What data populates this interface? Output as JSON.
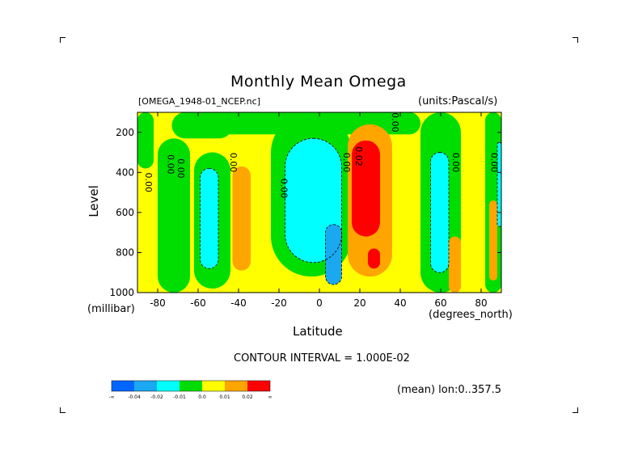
{
  "chart_data": {
    "type": "heatmap",
    "title": "Monthly Mean Omega",
    "source_label": "[OMEGA_1948-01_NCEP.nc]",
    "units_label": "(units:Pascal/s)",
    "xlabel": "Latitude",
    "xunit_label": "(degrees_north)",
    "ylabel": "Level",
    "yunit_label": "(millibar)",
    "xlim": [
      -90,
      90
    ],
    "ylim": [
      1000,
      100
    ],
    "x_ticks": [
      -80,
      -60,
      -40,
      -20,
      0,
      20,
      40,
      60,
      80
    ],
    "x_tick_labels": [
      "-80",
      "-60",
      "-40",
      "-20",
      "0",
      "20",
      "40",
      "60",
      "80"
    ],
    "y_ticks": [
      200,
      400,
      600,
      800,
      1000
    ],
    "y_tick_labels": [
      "200",
      "400",
      "600",
      "800",
      "1000"
    ],
    "contour_interval_text": "CONTOUR INTERVAL = 1.000E-02",
    "mean_note": "(mean) lon:0..357.5",
    "contour_labels": [
      {
        "x": -86,
        "y": 450,
        "text": "0.00"
      },
      {
        "x": -75,
        "y": 360,
        "text": "0.00"
      },
      {
        "x": -70,
        "y": 380,
        "text": "0.00"
      },
      {
        "x": -44,
        "y": 350,
        "text": "0.00"
      },
      {
        "x": -19,
        "y": 480,
        "text": "0.00"
      },
      {
        "x": 12,
        "y": 350,
        "text": "0.00"
      },
      {
        "x": 18,
        "y": 320,
        "text": "0.02"
      },
      {
        "x": 36,
        "y": 150,
        "text": "0.00"
      },
      {
        "x": 66,
        "y": 350,
        "text": "0.00"
      },
      {
        "x": 85,
        "y": 350,
        "text": "0.00"
      }
    ],
    "colorbar": {
      "colors": [
        "#0066ff",
        "#1aa9f0",
        "#00ffff",
        "#00dd00",
        "#ffff00",
        "#ffa500",
        "#ff0000"
      ],
      "labels": [
        "-∞",
        "-0.04",
        "-0.02",
        "-0.01",
        "0.0",
        "0.01",
        "0.02",
        "∞"
      ]
    },
    "fields": [
      {
        "name": "yellow",
        "color": "#ffff00",
        "x": -90,
        "y": 100,
        "w": 180,
        "h": 900
      },
      {
        "name": "green-far-south",
        "color": "#00dd00",
        "x": -90,
        "y": 100,
        "w": 8,
        "h": 280
      },
      {
        "name": "green-south-band",
        "color": "#00dd00",
        "x": -80,
        "y": 230,
        "w": 16,
        "h": 770
      },
      {
        "name": "green-tongue",
        "color": "#00dd00",
        "x": -73,
        "y": 100,
        "w": 30,
        "h": 130
      },
      {
        "name": "green-belt-top",
        "color": "#00dd00",
        "x": -70,
        "y": 100,
        "w": 120,
        "h": 110
      },
      {
        "name": "green-trough-west",
        "color": "#00dd00",
        "x": -62,
        "y": 300,
        "w": 18,
        "h": 680
      },
      {
        "name": "cyan-sh",
        "color": "#00ffff",
        "x": -59,
        "y": 380,
        "w": 9,
        "h": 500
      },
      {
        "name": "orange-sh",
        "color": "#ffa500",
        "x": -43,
        "y": 370,
        "w": 9,
        "h": 520
      },
      {
        "name": "green-eq",
        "color": "#00dd00",
        "x": -24,
        "y": 100,
        "w": 40,
        "h": 820
      },
      {
        "name": "cyan-eq",
        "color": "#00ffff",
        "x": -17,
        "y": 230,
        "w": 28,
        "h": 620
      },
      {
        "name": "blue-eq",
        "color": "#1aa9f0",
        "x": 3,
        "y": 660,
        "w": 8,
        "h": 300
      },
      {
        "name": "green-n1",
        "color": "#00dd00",
        "x": 14,
        "y": 100,
        "w": 10,
        "h": 50
      },
      {
        "name": "orange-nh",
        "color": "#ffa500",
        "x": 14,
        "y": 160,
        "w": 22,
        "h": 760
      },
      {
        "name": "red-nh",
        "color": "#ff0000",
        "x": 16,
        "y": 240,
        "w": 14,
        "h": 480
      },
      {
        "name": "red-nh-low",
        "color": "#ff0000",
        "x": 24,
        "y": 780,
        "w": 6,
        "h": 100
      },
      {
        "name": "green-nh-mid",
        "color": "#00dd00",
        "x": 50,
        "y": 100,
        "w": 20,
        "h": 900
      },
      {
        "name": "cyan-nh",
        "color": "#00ffff",
        "x": 55,
        "y": 300,
        "w": 9,
        "h": 600
      },
      {
        "name": "orange-nh-low",
        "color": "#ffa500",
        "x": 64,
        "y": 720,
        "w": 6,
        "h": 280
      },
      {
        "name": "green-nh-polar",
        "color": "#00dd00",
        "x": 82,
        "y": 100,
        "w": 8,
        "h": 900
      },
      {
        "name": "orange-pole",
        "color": "#ffa500",
        "x": 84,
        "y": 540,
        "w": 4,
        "h": 400
      },
      {
        "name": "cyan-pole",
        "color": "#00ffff",
        "x": 88,
        "y": 250,
        "w": 2,
        "h": 420
      }
    ]
  }
}
